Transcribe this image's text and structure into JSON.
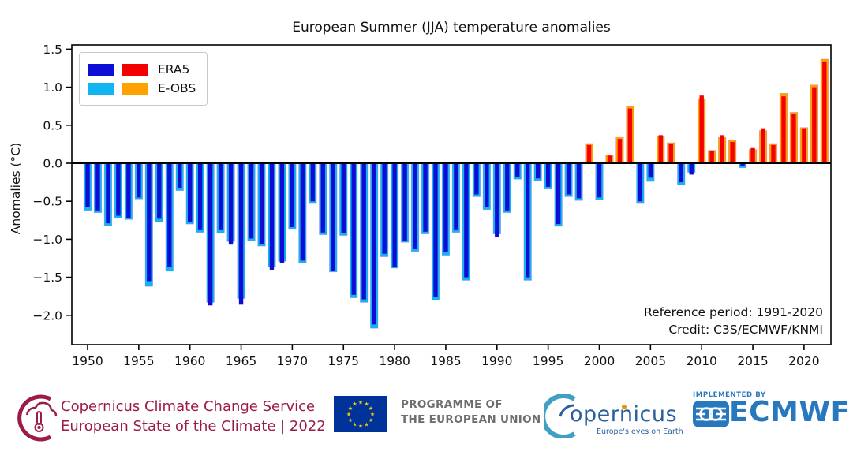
{
  "title": "European Summer (JJA) temperature anomalies",
  "ylabel": "Anomalies (°C)",
  "legend": {
    "era5": "ERA5",
    "eobs": "E-OBS"
  },
  "annotation": {
    "line1": "Reference period: 1991-2020",
    "line2": "Credit: C3S/ECMWF/KNMI"
  },
  "colors": {
    "era5_neg": "#0d0dd6",
    "era5_pos": "#f40000",
    "eobs_neg": "#12b4f2",
    "eobs_pos": "#ffa200",
    "eobs_edge": "#b06fd4",
    "axis": "#000000",
    "c3s_maroon": "#9b1c4a",
    "eu_blue": "#003399",
    "eu_star": "#ffcc00",
    "eu_text_gray": "#6d6e71",
    "copernicus_blue": "#2a5f9e",
    "copernicus_teal": "#3f9fc4",
    "ecmwf_blue": "#2878be",
    "accent_orange_dot": "#f39200"
  },
  "chart_data": {
    "type": "bar",
    "title": "European Summer (JJA) temperature anomalies",
    "xlabel": "",
    "ylabel": "Anomalies (°C)",
    "ylim": [
      -2.38,
      1.55
    ],
    "grid": false,
    "legend_position": "upper-left",
    "x": [
      1950,
      1951,
      1952,
      1953,
      1954,
      1955,
      1956,
      1957,
      1958,
      1959,
      1960,
      1961,
      1962,
      1963,
      1964,
      1965,
      1966,
      1967,
      1968,
      1969,
      1970,
      1971,
      1972,
      1973,
      1974,
      1975,
      1976,
      1977,
      1978,
      1979,
      1980,
      1981,
      1982,
      1983,
      1984,
      1985,
      1986,
      1987,
      1988,
      1989,
      1990,
      1991,
      1992,
      1993,
      1994,
      1995,
      1996,
      1997,
      1998,
      1999,
      2000,
      2001,
      2002,
      2003,
      2004,
      2005,
      2006,
      2007,
      2008,
      2009,
      2010,
      2011,
      2012,
      2013,
      2014,
      2015,
      2016,
      2017,
      2018,
      2019,
      2020,
      2021,
      2022
    ],
    "series": [
      {
        "name": "E-OBS",
        "color_neg": "#12b4f2",
        "color_pos": "#ffa200",
        "values": [
          -0.62,
          -0.65,
          -0.82,
          -0.72,
          -0.74,
          -0.47,
          -1.62,
          -0.77,
          -1.42,
          -0.36,
          -0.8,
          -0.91,
          -1.83,
          -0.92,
          -1.03,
          -1.78,
          -1.02,
          -1.09,
          -1.36,
          -1.29,
          -0.87,
          -1.31,
          -0.53,
          -0.94,
          -1.43,
          -0.95,
          -1.77,
          -1.83,
          -2.17,
          -1.23,
          -1.38,
          -1.04,
          -1.16,
          -0.93,
          -1.8,
          -1.21,
          -0.91,
          -1.54,
          -0.44,
          -0.61,
          -0.93,
          -0.65,
          -0.21,
          -1.54,
          -0.23,
          -0.34,
          -0.83,
          -0.44,
          -0.49,
          0.26,
          -0.48,
          0.11,
          0.34,
          0.75,
          -0.53,
          -0.24,
          0.35,
          0.27,
          -0.28,
          -0.12,
          0.85,
          0.17,
          0.34,
          0.3,
          -0.06,
          0.18,
          0.43,
          0.26,
          0.92,
          0.67,
          0.47,
          1.03,
          1.37
        ]
      },
      {
        "name": "ERA5",
        "color_neg": "#0d0dd6",
        "color_pos": "#f40000",
        "values": [
          -0.58,
          -0.62,
          -0.79,
          -0.69,
          -0.72,
          -0.45,
          -1.55,
          -0.73,
          -1.36,
          -0.33,
          -0.77,
          -0.88,
          -1.87,
          -0.88,
          -1.07,
          -1.86,
          -0.99,
          -1.06,
          -1.4,
          -1.31,
          -0.84,
          -1.28,
          -0.5,
          -0.91,
          -1.41,
          -0.92,
          -1.73,
          -1.79,
          -2.12,
          -1.19,
          -1.36,
          -1.02,
          -1.13,
          -0.9,
          -1.76,
          -1.17,
          -0.88,
          -1.5,
          -0.41,
          -0.58,
          -0.97,
          -0.62,
          -0.18,
          -1.5,
          -0.2,
          -0.31,
          -0.8,
          -0.41,
          -0.46,
          0.24,
          -0.45,
          0.1,
          0.32,
          0.72,
          -0.5,
          -0.19,
          0.37,
          0.26,
          -0.25,
          -0.15,
          0.89,
          0.16,
          0.37,
          0.28,
          -0.04,
          0.2,
          0.46,
          0.24,
          0.88,
          0.65,
          0.46,
          1.0,
          1.34
        ]
      }
    ],
    "yticks": {
      "values": [
        1.5,
        1.0,
        0.5,
        0.0,
        -0.5,
        -1.0,
        -1.5,
        -2.0
      ],
      "labels": [
        "1.5",
        "1.0",
        "0.5",
        "0.0",
        "−0.5",
        "−1.0",
        "−1.5",
        "−2.0"
      ]
    },
    "xticks": {
      "values": [
        1950,
        1955,
        1960,
        1965,
        1970,
        1975,
        1980,
        1985,
        1990,
        1995,
        2000,
        2005,
        2010,
        2015,
        2020
      ],
      "labels": [
        "1950",
        "1955",
        "1960",
        "1965",
        "1970",
        "1975",
        "1980",
        "1985",
        "1990",
        "1995",
        "2000",
        "2005",
        "2010",
        "2015",
        "2020"
      ]
    }
  },
  "footer": {
    "c3s": {
      "line1": "Copernicus Climate Change Service",
      "line2": "European State of the Climate | 2022"
    },
    "eu": {
      "line1": "PROGRAMME OF",
      "line2": "THE EUROPEAN UNION"
    },
    "copernicus": {
      "wordmark": "opernicus",
      "tagline": "Europe's eyes on Earth"
    },
    "ecmwf": {
      "implemented": "IMPLEMENTED BY",
      "wordmark": "ECMWF"
    }
  }
}
